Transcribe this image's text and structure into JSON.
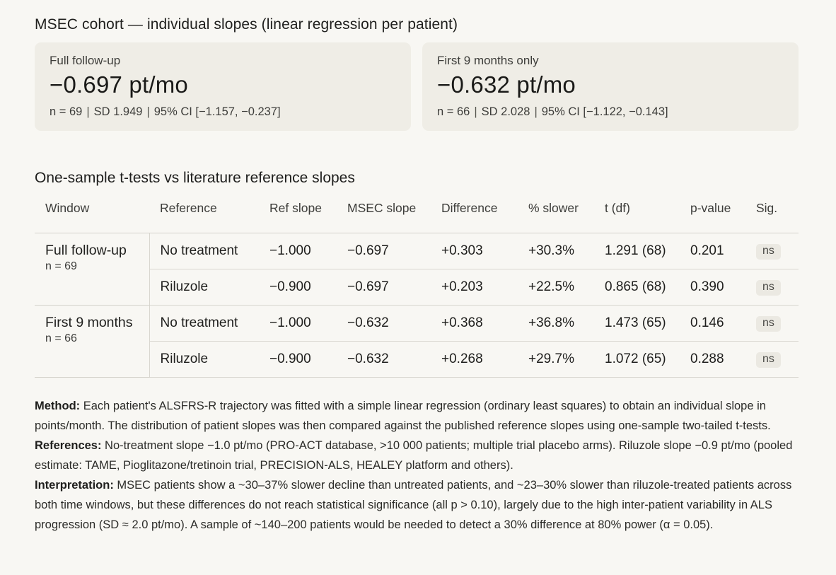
{
  "main": {
    "title": "MSEC cohort — individual slopes (linear regression per patient)",
    "cards": [
      {
        "label": "Full follow-up",
        "value": "−0.697 pt/mo",
        "n": "n = 69",
        "sd": "SD 1.949",
        "ci": "95% CI [−1.157, −0.237]"
      },
      {
        "label": "First 9 months only",
        "value": "−0.632 pt/mo",
        "n": "n = 66",
        "sd": "SD 2.028",
        "ci": "95% CI [−1.122, −0.143]"
      }
    ],
    "ttest_title": "One-sample t-tests vs literature reference slopes",
    "table": {
      "headers": [
        "Window",
        "Reference",
        "Ref slope",
        "MSEC slope",
        "Difference",
        "% slower",
        "t (df)",
        "p-value",
        "Sig."
      ],
      "groups": [
        {
          "window": "Full follow-up",
          "n": "n = 69",
          "rows": [
            {
              "reference": "No treatment",
              "ref_slope": "−1.000",
              "msec_slope": "−0.697",
              "difference": "+0.303",
              "pct_slower": "+30.3%",
              "t_df": "1.291 (68)",
              "p_value": "0.201",
              "sig": "ns"
            },
            {
              "reference": "Riluzole",
              "ref_slope": "−0.900",
              "msec_slope": "−0.697",
              "difference": "+0.203",
              "pct_slower": "+22.5%",
              "t_df": "0.865 (68)",
              "p_value": "0.390",
              "sig": "ns"
            }
          ]
        },
        {
          "window": "First 9 months",
          "n": "n = 66",
          "rows": [
            {
              "reference": "No treatment",
              "ref_slope": "−1.000",
              "msec_slope": "−0.632",
              "difference": "+0.368",
              "pct_slower": "+36.8%",
              "t_df": "1.473 (65)",
              "p_value": "0.146",
              "sig": "ns"
            },
            {
              "reference": "Riluzole",
              "ref_slope": "−0.900",
              "msec_slope": "−0.632",
              "difference": "+0.268",
              "pct_slower": "+29.7%",
              "t_df": "1.072 (65)",
              "p_value": "0.288",
              "sig": "ns"
            }
          ]
        }
      ]
    },
    "notes": {
      "method_label": "Method:",
      "method_text": " Each patient's ALSFRS-R trajectory was fitted with a simple linear regression (ordinary least squares) to obtain an individual slope in points/month. The distribution of patient slopes was then compared against the published reference slopes using one-sample two-tailed t-tests.",
      "references_label": "References:",
      "references_text": " No-treatment slope −1.0 pt/mo (PRO-ACT database, >10 000 patients; multiple trial placebo arms). Riluzole slope −0.9 pt/mo (pooled estimate: TAME, Pioglitazone/tretinoin trial, PRECISION-ALS, HEALEY platform and others).",
      "interpretation_label": "Interpretation:",
      "interpretation_text": " MSEC patients show a ~30–37% slower decline than untreated patients, and ~23–30% slower than riluzole-treated patients across both time windows, but these differences do not reach statistical significance (all p > 0.10), largely due to the high inter-patient variability in ALS progression (SD ≈ 2.0 pt/mo). A sample of ~140–200 patients would be needed to detect a 30% difference at 80% power (α = 0.05)."
    }
  }
}
